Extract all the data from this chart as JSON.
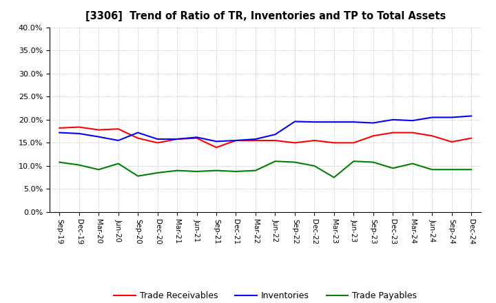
{
  "title": "[3306]  Trend of Ratio of TR, Inventories and TP to Total Assets",
  "x_labels": [
    "Sep-19",
    "Dec-19",
    "Mar-20",
    "Jun-20",
    "Sep-20",
    "Dec-20",
    "Mar-21",
    "Jun-21",
    "Sep-21",
    "Dec-21",
    "Mar-22",
    "Jun-22",
    "Sep-22",
    "Dec-22",
    "Mar-23",
    "Jun-23",
    "Sep-23",
    "Dec-23",
    "Mar-24",
    "Jun-24",
    "Sep-24",
    "Dec-24"
  ],
  "trade_receivables": [
    0.182,
    0.184,
    0.178,
    0.18,
    0.16,
    0.15,
    0.158,
    0.16,
    0.14,
    0.155,
    0.155,
    0.155,
    0.15,
    0.155,
    0.15,
    0.15,
    0.165,
    0.172,
    0.172,
    0.165,
    0.152,
    0.16
  ],
  "inventories": [
    0.172,
    0.17,
    0.163,
    0.155,
    0.172,
    0.158,
    0.158,
    0.162,
    0.153,
    0.155,
    0.158,
    0.168,
    0.196,
    0.195,
    0.195,
    0.195,
    0.193,
    0.2,
    0.198,
    0.205,
    0.205,
    0.208
  ],
  "trade_payables": [
    0.108,
    0.102,
    0.092,
    0.105,
    0.078,
    0.085,
    0.09,
    0.088,
    0.09,
    0.088,
    0.09,
    0.11,
    0.108,
    0.1,
    0.075,
    0.11,
    0.108,
    0.095,
    0.105,
    0.092,
    0.092,
    0.092
  ],
  "tr_color": "#ff0000",
  "inv_color": "#0000ff",
  "tp_color": "#008000",
  "ylim": [
    0.0,
    0.4
  ],
  "yticks": [
    0.0,
    0.05,
    0.1,
    0.15,
    0.2,
    0.25,
    0.3,
    0.35,
    0.4
  ],
  "bg_color": "#ffffff",
  "grid_color": "#aaaaaa",
  "legend_labels": [
    "Trade Receivables",
    "Inventories",
    "Trade Payables"
  ]
}
